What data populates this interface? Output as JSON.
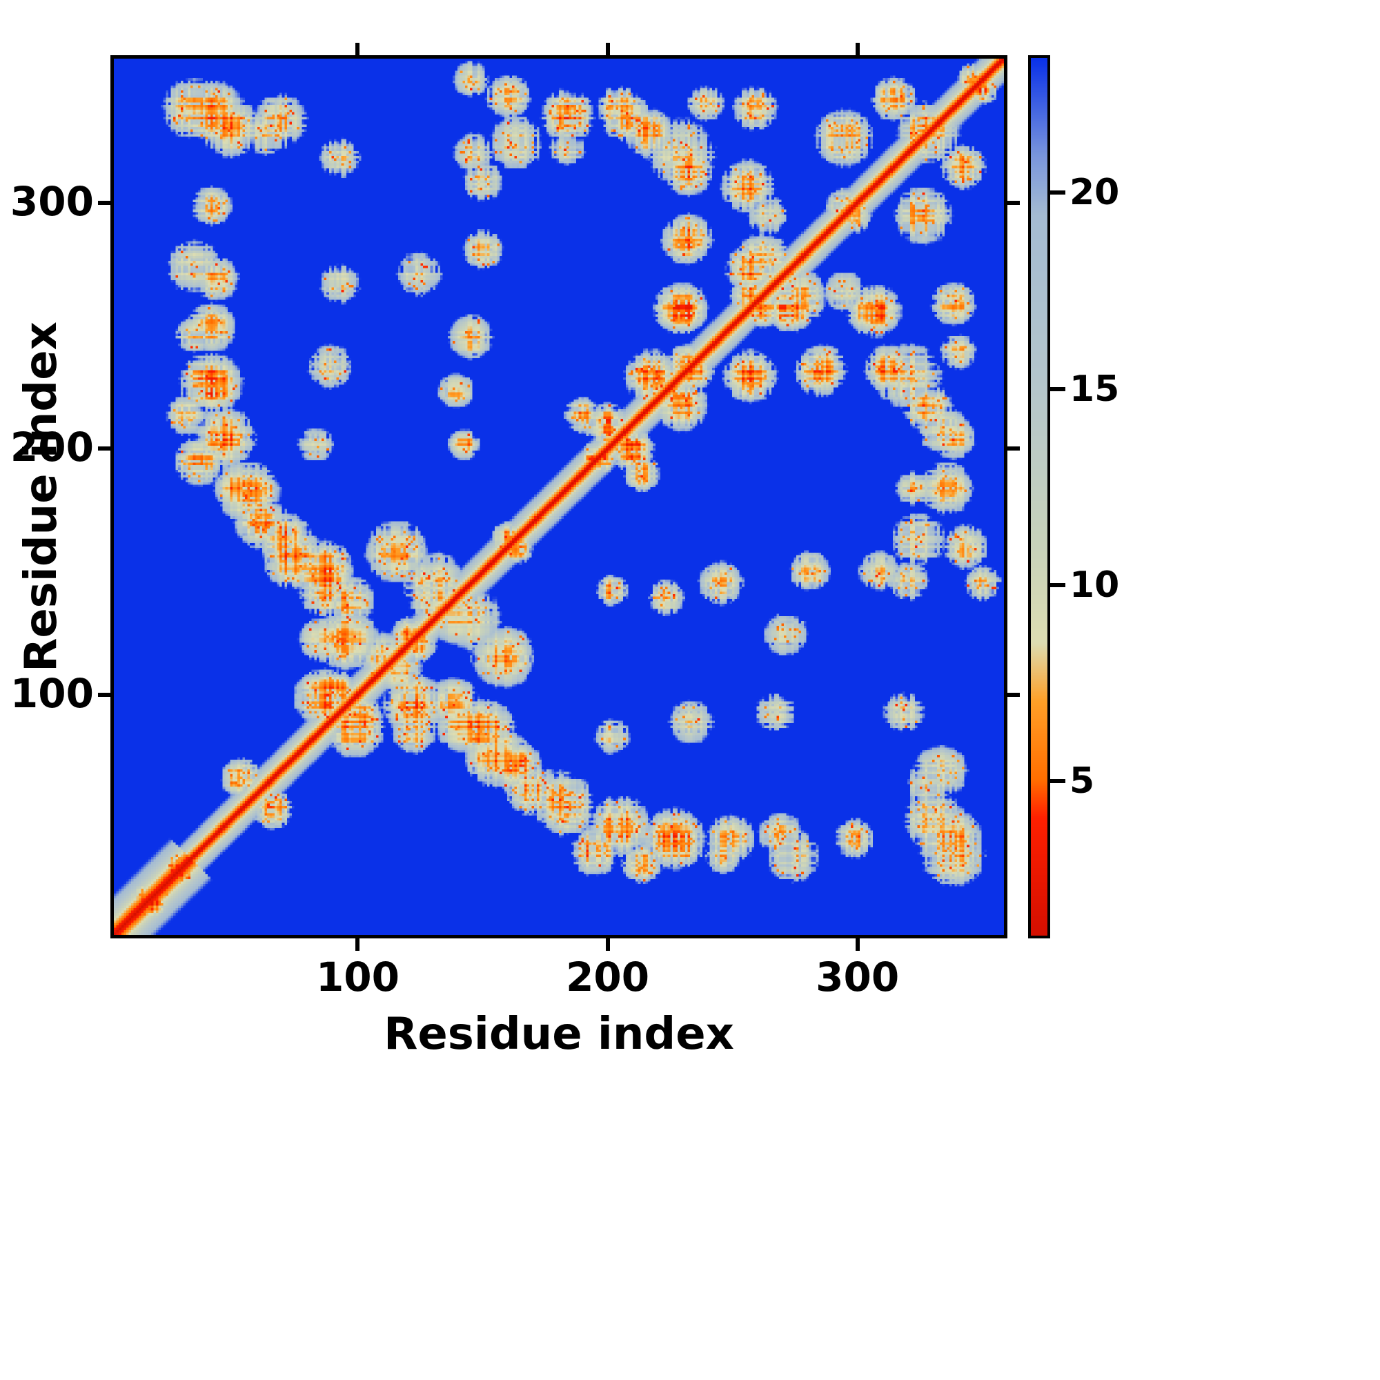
{
  "chart_data": {
    "type": "heatmap",
    "title": "",
    "xlabel": "Residue index",
    "ylabel": "Residue index",
    "x_range": [
      1,
      360
    ],
    "y_range": [
      1,
      360
    ],
    "x_ticks": [
      100,
      200,
      300
    ],
    "y_ticks": [
      100,
      200,
      300
    ],
    "symmetric": true,
    "background_value": 30,
    "background_color": "#0a31e8",
    "diagonal": {
      "value_at_diag": 1.2,
      "slope_per_residue": 2.1,
      "slope_near_terminus": 1.3
    },
    "colorbar": {
      "range": [
        1,
        23.5
      ],
      "ticks": [
        5,
        10,
        15,
        20
      ]
    },
    "colormap": {
      "stops": [
        [
          1.0,
          "#d40f00"
        ],
        [
          4.0,
          "#ff2000"
        ],
        [
          5.0,
          "#ff6f00"
        ],
        [
          7.0,
          "#ffa028"
        ],
        [
          8.5,
          "#ddddb2"
        ],
        [
          11.0,
          "#c8d2ba"
        ],
        [
          15.0,
          "#b5c6cb"
        ],
        [
          19.5,
          "#a4bbd2"
        ],
        [
          21.0,
          "#7a96dc"
        ],
        [
          23.5,
          "#0a31e8"
        ]
      ]
    },
    "noise": {
      "seed": 42,
      "speckle_fraction": 0.07,
      "speckle_values": [
        4,
        7
      ],
      "texture_amplitude": 3.5,
      "hole_penalty": 6
    },
    "contact_clusters": [
      [
        33,
        340,
        14,
        7
      ],
      [
        48,
        332,
        13,
        6
      ],
      [
        62,
        330,
        10,
        9
      ],
      [
        40,
        300,
        9,
        7
      ],
      [
        42,
        270,
        10,
        7
      ],
      [
        33,
        247,
        8,
        8
      ],
      [
        37,
        230,
        10,
        6
      ],
      [
        30,
        214,
        9,
        7
      ],
      [
        35,
        195,
        11,
        6
      ],
      [
        52,
        184,
        12,
        6
      ],
      [
        60,
        170,
        12,
        7
      ],
      [
        74,
        155,
        14,
        6
      ],
      [
        86,
        142,
        12,
        7
      ],
      [
        95,
        122,
        14,
        6
      ],
      [
        85,
        98,
        13,
        6
      ],
      [
        115,
        158,
        14,
        7
      ],
      [
        130,
        145,
        14,
        9
      ],
      [
        140,
        130,
        12,
        8
      ],
      [
        110,
        115,
        11,
        8
      ],
      [
        138,
        96,
        11,
        7
      ],
      [
        122,
        84,
        10,
        8
      ],
      [
        150,
        85,
        14,
        6
      ],
      [
        163,
        70,
        12,
        6
      ],
      [
        182,
        55,
        14,
        6
      ],
      [
        205,
        45,
        14,
        6
      ],
      [
        227,
        40,
        14,
        5
      ],
      [
        250,
        40,
        11,
        7
      ],
      [
        275,
        33,
        12,
        9
      ],
      [
        338,
        40,
        15,
        6
      ],
      [
        335,
        68,
        12,
        8
      ],
      [
        200,
        210,
        10,
        5
      ],
      [
        190,
        214,
        8,
        6
      ],
      [
        218,
        230,
        12,
        6
      ],
      [
        230,
        258,
        12,
        5
      ],
      [
        232,
        286,
        11,
        6
      ],
      [
        233,
        314,
        11,
        6
      ],
      [
        217,
        330,
        11,
        6
      ],
      [
        257,
        308,
        12,
        6
      ],
      [
        263,
        278,
        12,
        7
      ],
      [
        274,
        258,
        11,
        6
      ],
      [
        287,
        233,
        11,
        6
      ],
      [
        322,
        230,
        15,
        9
      ],
      [
        336,
        208,
        11,
        7
      ],
      [
        337,
        184,
        12,
        6
      ],
      [
        310,
        150,
        9,
        9
      ],
      [
        282,
        150,
        9,
        8
      ],
      [
        246,
        145,
        10,
        8
      ],
      [
        224,
        139,
        8,
        8
      ],
      [
        202,
        142,
        7,
        7
      ],
      [
        330,
        330,
        14,
        6
      ],
      [
        316,
        344,
        10,
        7
      ],
      [
        296,
        328,
        13,
        6
      ],
      [
        260,
        340,
        10,
        7
      ],
      [
        163,
        326,
        12,
        9
      ],
      [
        205,
        340,
        10,
        7
      ],
      [
        240,
        342,
        8,
        8
      ],
      [
        146,
        322,
        9,
        10
      ],
      [
        124,
        272,
        10,
        10
      ],
      [
        88,
        234,
        10,
        10
      ],
      [
        82,
        202,
        8,
        10
      ],
      [
        65,
        52,
        9,
        6
      ],
      [
        15,
        15,
        10,
        5
      ],
      [
        27,
        27,
        9,
        5
      ],
      [
        90,
        100,
        10,
        6
      ],
      [
        196,
        196,
        8,
        5
      ],
      [
        232,
        235,
        9,
        6
      ],
      [
        258,
        263,
        9,
        6
      ],
      [
        160,
        163,
        8,
        6
      ],
      [
        120,
        124,
        8,
        6
      ],
      [
        300,
        296,
        8,
        7
      ],
      [
        348,
        352,
        7,
        6
      ],
      [
        345,
        160,
        10,
        8
      ],
      [
        352,
        145,
        8,
        9
      ],
      [
        184,
        324,
        8,
        9
      ],
      [
        296,
        265,
        9,
        9
      ],
      [
        320,
        92,
        9,
        10
      ],
      [
        268,
        92,
        9,
        10
      ]
    ]
  }
}
